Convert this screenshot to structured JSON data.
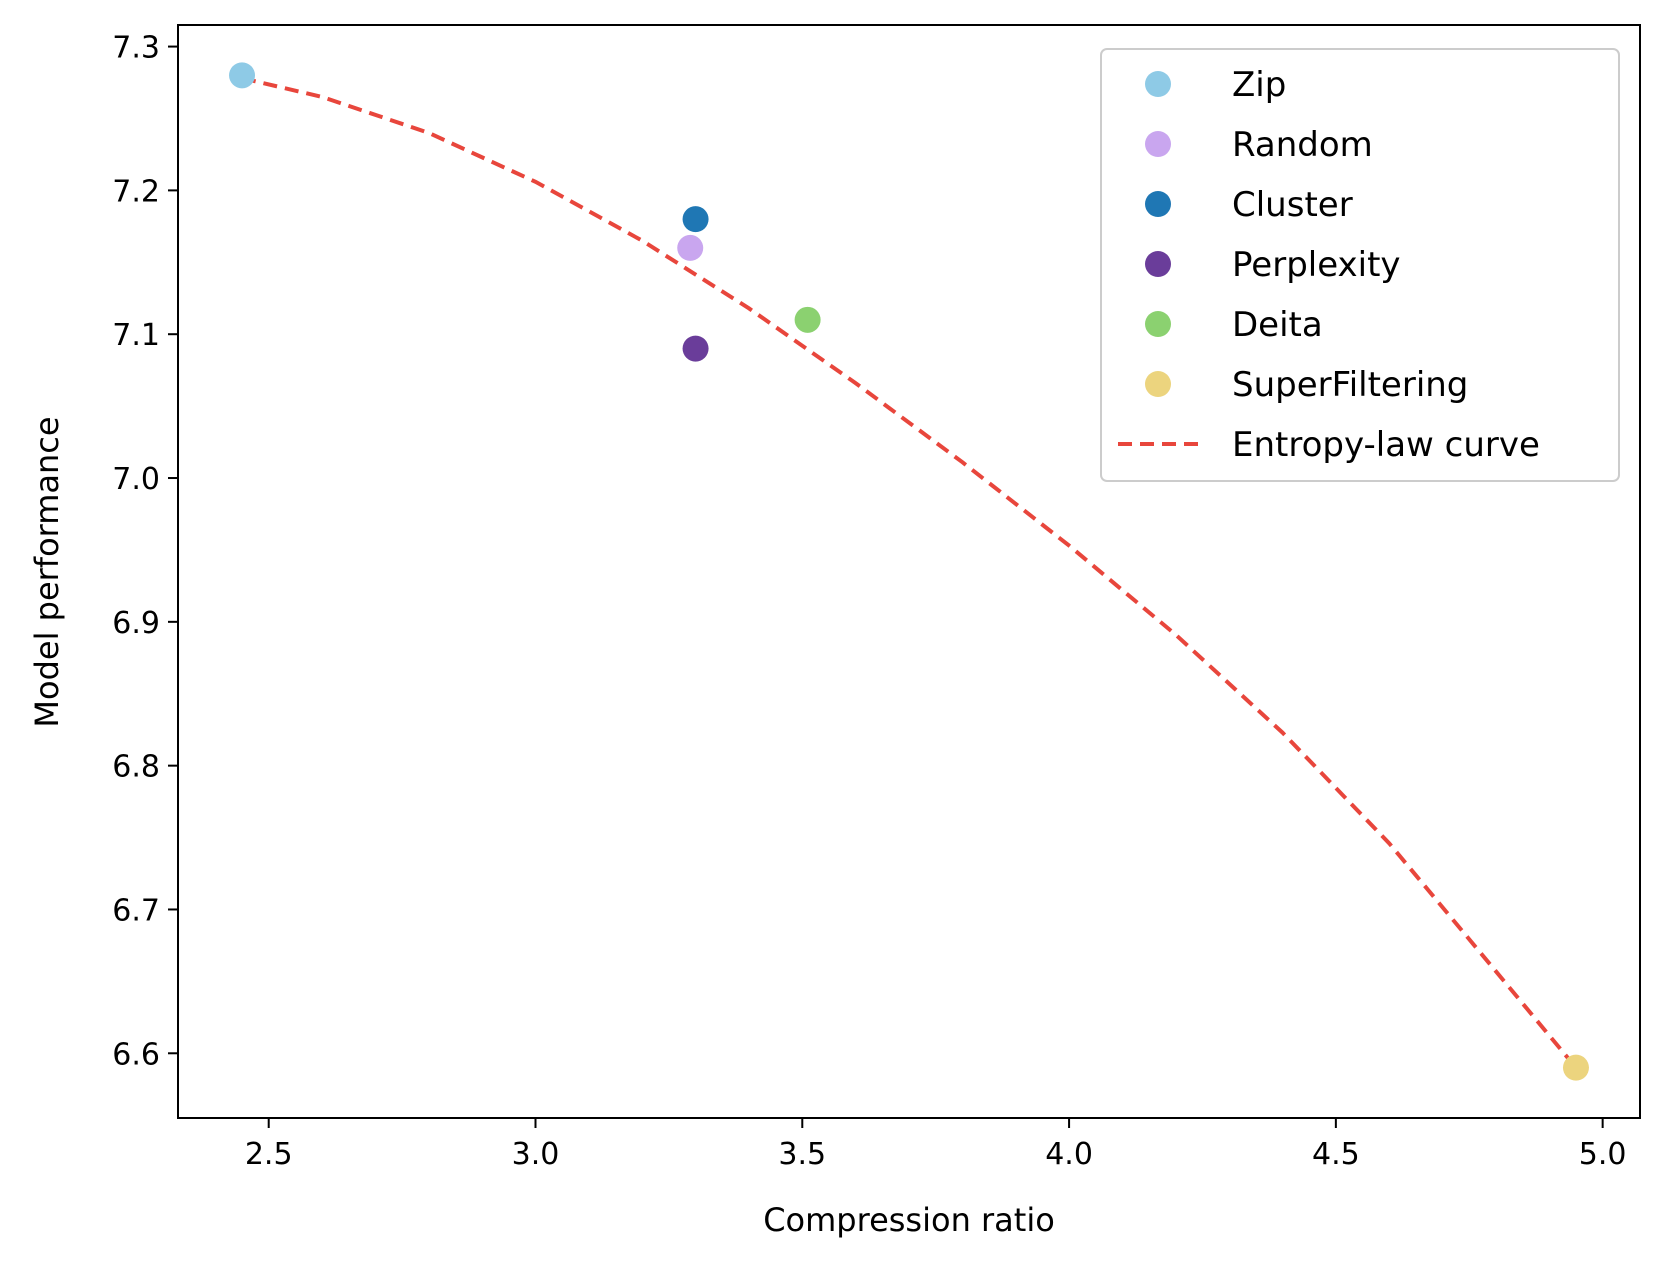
{
  "chart_data": {
    "type": "scatter",
    "title": "",
    "xlabel": "Compression ratio",
    "ylabel": "Model performance",
    "xlim": [
      2.33,
      5.07
    ],
    "ylim": [
      6.555,
      7.315
    ],
    "xticks": [
      2.5,
      3.0,
      3.5,
      4.0,
      4.5,
      5.0
    ],
    "xtick_labels": [
      "2.5",
      "3.0",
      "3.5",
      "4.0",
      "4.5",
      "5.0"
    ],
    "yticks": [
      6.6,
      6.7,
      6.8,
      6.9,
      7.0,
      7.1,
      7.2,
      7.3
    ],
    "ytick_labels": [
      "6.6",
      "6.7",
      "6.8",
      "6.9",
      "7.0",
      "7.1",
      "7.2",
      "7.3"
    ],
    "grid": false,
    "legend_position": "top-right",
    "series": [
      {
        "name": "Zip",
        "color": "#8ecae6",
        "points": [
          [
            2.45,
            7.28
          ]
        ]
      },
      {
        "name": "Random",
        "color": "#c9a6ef",
        "points": [
          [
            3.29,
            7.16
          ]
        ]
      },
      {
        "name": "Cluster",
        "color": "#1f77b4",
        "points": [
          [
            3.3,
            7.18
          ]
        ]
      },
      {
        "name": "Perplexity",
        "color": "#6a3d9a",
        "points": [
          [
            3.3,
            7.09
          ]
        ]
      },
      {
        "name": "Deita",
        "color": "#8bd170",
        "points": [
          [
            3.51,
            7.11
          ]
        ]
      },
      {
        "name": "SuperFiltering",
        "color": "#ecd47e",
        "points": [
          [
            4.95,
            6.59
          ]
        ]
      }
    ],
    "curve": {
      "name": "Entropy-law curve",
      "color": "#e8463c",
      "style": "dashed",
      "x": [
        2.45,
        2.6,
        2.8,
        3.0,
        3.2,
        3.4,
        3.6,
        3.8,
        4.0,
        4.2,
        4.4,
        4.6,
        4.8,
        4.95
      ],
      "y": [
        7.278,
        7.265,
        7.24,
        7.206,
        7.165,
        7.118,
        7.066,
        7.011,
        6.953,
        6.891,
        6.823,
        6.746,
        6.657,
        6.59
      ]
    }
  }
}
